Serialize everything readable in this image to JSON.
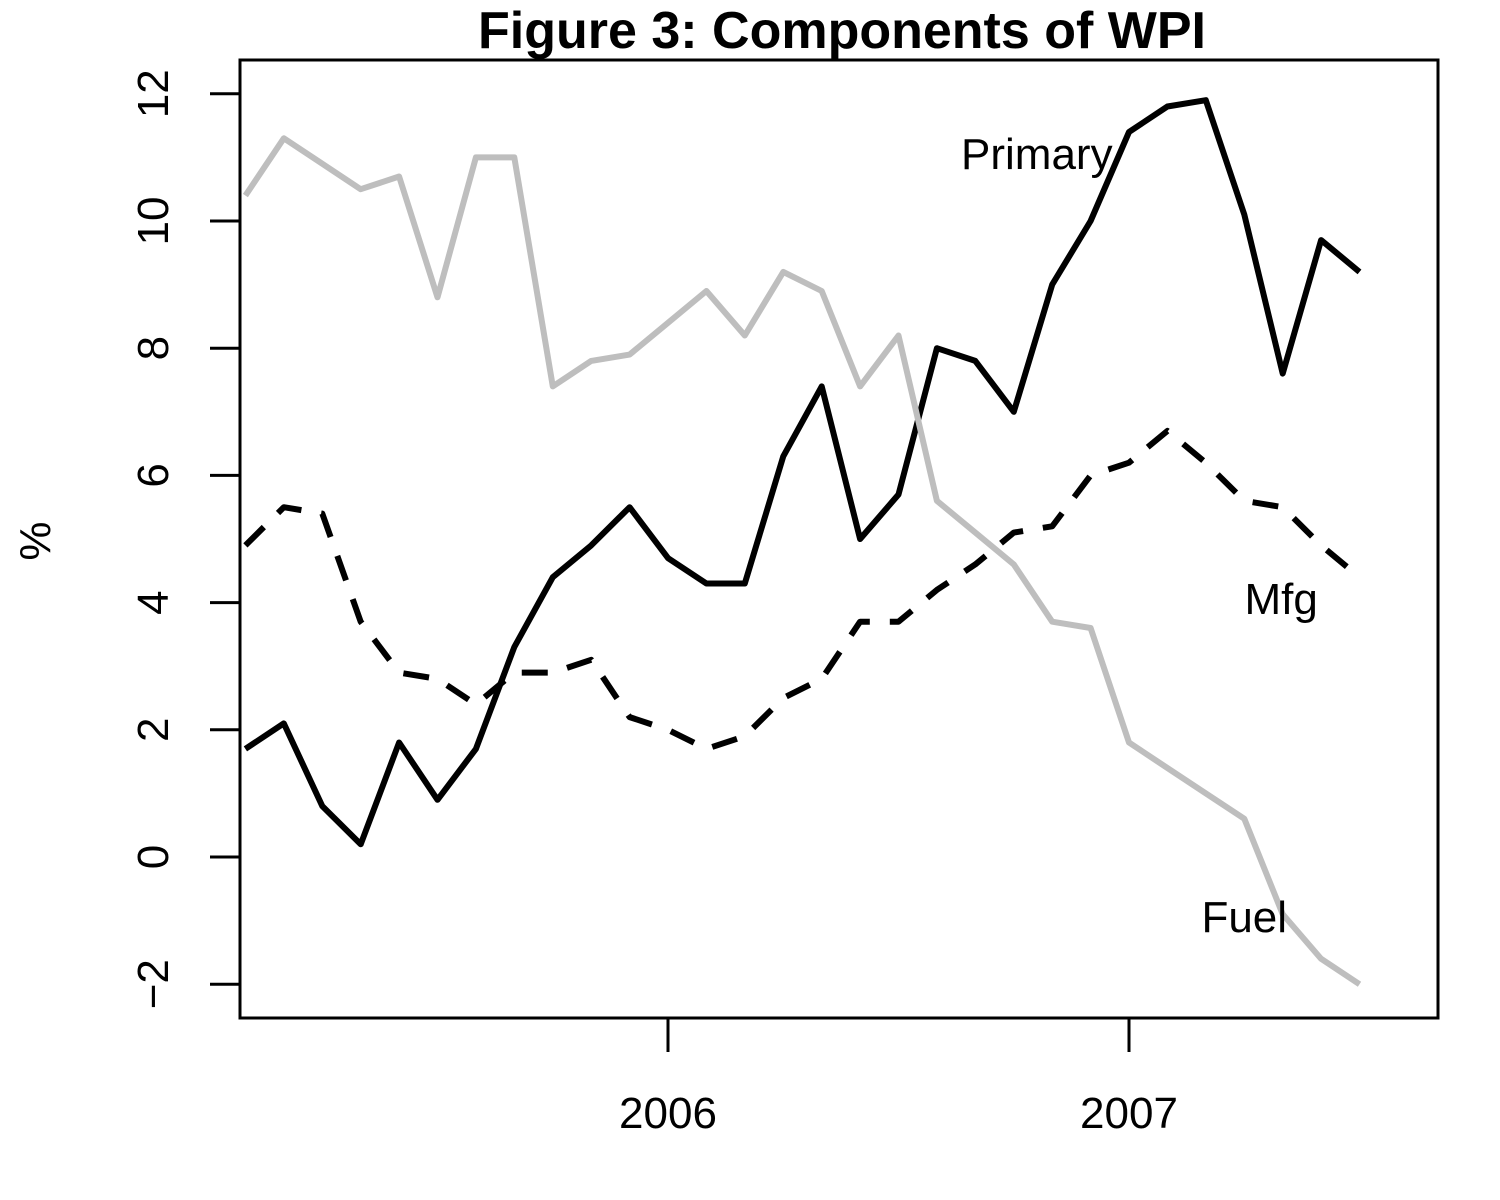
{
  "chart_data": {
    "type": "line",
    "title": "Figure 3: Components of WPI",
    "xlabel": "",
    "ylabel": "%",
    "xlim": [
      2005.1,
      2007.7
    ],
    "ylim": [
      -2.5,
      12.6
    ],
    "x_ticks": [
      {
        "value": 2006,
        "label": "2006"
      },
      {
        "value": 2007,
        "label": "2007"
      }
    ],
    "y_ticks": [
      {
        "value": -2,
        "label": "−2"
      },
      {
        "value": 0,
        "label": "0"
      },
      {
        "value": 2,
        "label": "2"
      },
      {
        "value": 4,
        "label": "4"
      },
      {
        "value": 6,
        "label": "6"
      },
      {
        "value": 8,
        "label": "8"
      },
      {
        "value": 10,
        "label": "10"
      },
      {
        "value": 12,
        "label": "12"
      }
    ],
    "grid": false,
    "legend": "none (direct series labels)",
    "x": [
      2005.0833,
      2005.1667,
      2005.25,
      2005.3333,
      2005.4167,
      2005.5,
      2005.5833,
      2005.6667,
      2005.75,
      2005.8333,
      2005.9167,
      2006.0,
      2006.0833,
      2006.1667,
      2006.25,
      2006.3333,
      2006.4167,
      2006.5,
      2006.5833,
      2006.6667,
      2006.75,
      2006.8333,
      2006.9167,
      2007.0,
      2007.0833,
      2007.1667,
      2007.25,
      2007.3333,
      2007.4167,
      2007.5,
      2007.5833
    ],
    "series": [
      {
        "name": "Primary",
        "color": "#000000",
        "dash": "solid",
        "values": [
          1.7,
          2.1,
          0.8,
          0.2,
          1.8,
          0.9,
          1.7,
          3.3,
          4.4,
          4.9,
          5.5,
          4.7,
          4.3,
          4.3,
          6.3,
          7.4,
          5.0,
          5.7,
          8.0,
          7.8,
          7.0,
          9.0,
          10.0,
          11.4,
          11.8,
          11.9,
          10.1,
          7.6,
          9.7,
          9.2,
          null
        ]
      },
      {
        "name": "Mfg",
        "color": "#000000",
        "dash": "dashed",
        "values": [
          4.9,
          5.5,
          5.4,
          3.7,
          2.9,
          2.8,
          2.4,
          2.9,
          2.9,
          3.1,
          2.2,
          2.0,
          1.7,
          1.9,
          2.5,
          2.8,
          3.7,
          3.7,
          4.2,
          4.6,
          5.1,
          5.2,
          6.0,
          6.2,
          6.7,
          6.2,
          5.6,
          5.5,
          4.9,
          4.4,
          null
        ]
      },
      {
        "name": "Fuel",
        "color": "#bebebe",
        "dash": "solid",
        "values": [
          10.4,
          11.3,
          10.9,
          10.5,
          10.7,
          8.8,
          11.0,
          11.0,
          7.4,
          7.8,
          7.9,
          8.4,
          8.9,
          8.2,
          9.2,
          8.9,
          7.4,
          8.2,
          5.6,
          5.1,
          4.6,
          3.7,
          3.6,
          1.8,
          1.4,
          1.0,
          0.6,
          -0.9,
          -1.6,
          -2.0,
          null
        ]
      }
    ],
    "annotations": [
      {
        "text": "Primary",
        "series": "Fuel",
        "x": 2006.8,
        "y": 11.0
      },
      {
        "text": "Mfg",
        "series": "Mfg",
        "x": 2007.33,
        "y": 4.0
      },
      {
        "text": "Fuel",
        "series": "Primary",
        "x": 2007.25,
        "y": -1.0
      }
    ]
  }
}
